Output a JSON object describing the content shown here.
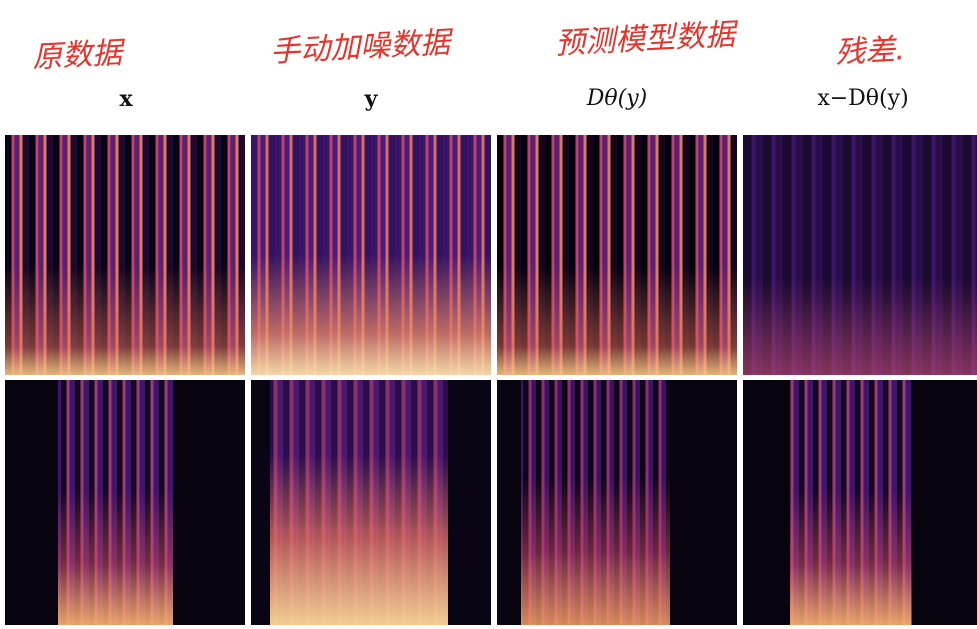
{
  "columns": [
    {
      "annotation": "原数据",
      "label": "x"
    },
    {
      "annotation": "手动加噪数据",
      "label": "y"
    },
    {
      "annotation": "预测模型数据",
      "label": "Dθ(y)"
    },
    {
      "annotation": "残差.",
      "label": "x−Dθ(y)"
    }
  ]
}
